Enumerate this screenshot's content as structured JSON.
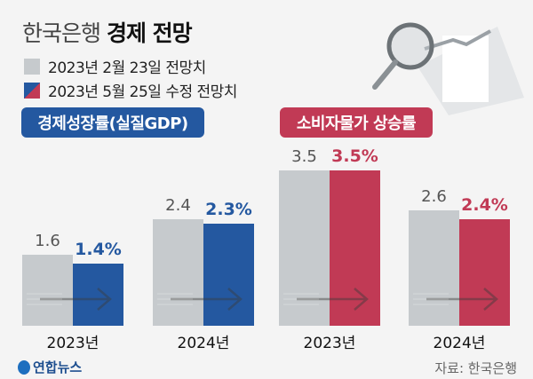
{
  "title_light": "한국은행",
  "title_bold": "경제 전망",
  "legend": [
    {
      "label": "2023년 2월 23일 전망치",
      "color": "#c6cacd"
    },
    {
      "label": "2023년 5월 25일 수정 전망치",
      "color": "#2458a0"
    }
  ],
  "source": "자료: 한국은행",
  "logo": "연합뉴스",
  "chart_data": [
    {
      "type": "bar",
      "title": "경제성장률(실질GDP)",
      "title_color": "#2458a0",
      "categories": [
        "2023년",
        "2024년"
      ],
      "series": [
        {
          "name": "2023년 2월 23일 전망치",
          "values": [
            1.6,
            2.4
          ],
          "labels": [
            "1.6",
            "2.4"
          ],
          "color": "#c6cacd"
        },
        {
          "name": "2023년 5월 25일 수정 전망치",
          "values": [
            1.4,
            2.3
          ],
          "labels": [
            "1.4%",
            "2.3%"
          ],
          "color": "#2458a0"
        }
      ]
    },
    {
      "type": "bar",
      "title": "소비자물가 상승률",
      "title_color": "#c13a55",
      "categories": [
        "2023년",
        "2024년"
      ],
      "series": [
        {
          "name": "2023년 2월 23일 전망치",
          "values": [
            3.5,
            2.6
          ],
          "labels": [
            "3.5",
            "2.6"
          ],
          "color": "#c6cacd"
        },
        {
          "name": "2023년 5월 25일 수정 전망치",
          "values": [
            3.5,
            2.4
          ],
          "labels": [
            "3.5%",
            "2.4%"
          ],
          "color": "#c13a55"
        }
      ]
    }
  ]
}
